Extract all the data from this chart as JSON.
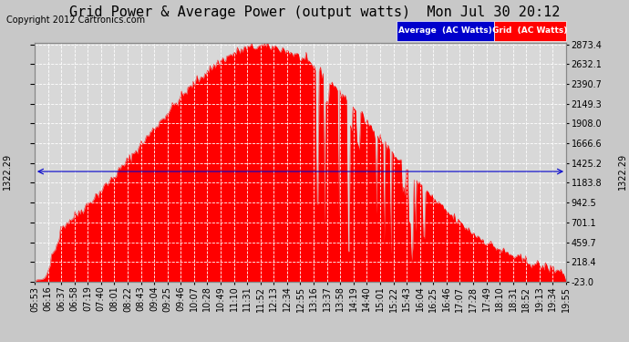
{
  "title": "Grid Power & Average Power (output watts)  Mon Jul 30 20:12",
  "copyright": "Copyright 2012 Cartronics.com",
  "average_value": 1322.29,
  "y_min": -23.0,
  "y_max": 2873.4,
  "yticks_right": [
    2873.4,
    2632.1,
    2390.7,
    2149.3,
    1908.0,
    1666.6,
    1425.2,
    1183.8,
    942.5,
    701.1,
    459.7,
    218.4,
    -23.0
  ],
  "bg_color": "#c8c8c8",
  "plot_bg_color": "#d8d8d8",
  "grid_color": "#ffffff",
  "fill_color": "#ff0000",
  "line_color": "#ff0000",
  "avg_line_color": "#0000cc",
  "legend_avg_color": "#0000cc",
  "legend_grid_color": "#ff0000",
  "title_fontsize": 11,
  "copyright_fontsize": 7,
  "tick_fontsize": 7,
  "avg_label": "1322.29",
  "x_labels": [
    "05:53",
    "06:16",
    "06:37",
    "06:58",
    "07:19",
    "07:40",
    "08:01",
    "08:22",
    "08:43",
    "09:04",
    "09:25",
    "09:46",
    "10:07",
    "10:28",
    "10:49",
    "11:10",
    "11:31",
    "11:52",
    "12:13",
    "12:34",
    "12:55",
    "13:16",
    "13:37",
    "13:58",
    "14:19",
    "14:40",
    "15:01",
    "15:22",
    "15:43",
    "16:04",
    "16:25",
    "16:46",
    "17:07",
    "17:28",
    "17:49",
    "18:10",
    "18:31",
    "18:52",
    "19:13",
    "19:34",
    "19:55"
  ]
}
